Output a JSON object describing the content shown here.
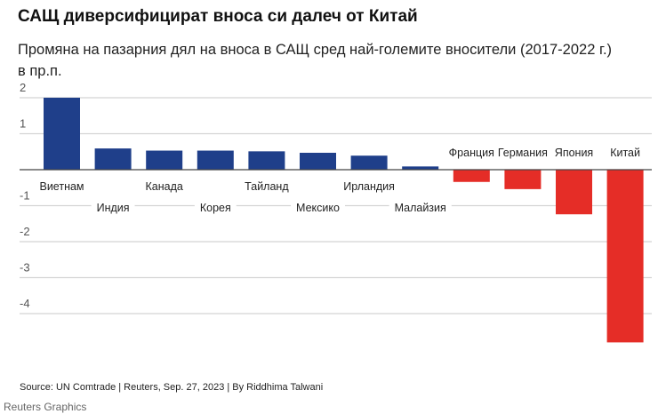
{
  "title": "САЩ диверсифицират вноса си далеч от Китай",
  "subtitle": "Промяна на пазарния дял на вноса в САЩ сред най-големите вносители (2017-2022 г.)",
  "unit": "в пр.п.",
  "source": "Source: UN Comtrade | Reuters, Sep. 27, 2023 | By Riddhima Talwani",
  "brand": "Reuters Graphics",
  "colors": {
    "positive": "#1f3f8a",
    "negative": "#e52d27"
  },
  "chart_data": {
    "type": "bar",
    "title": "САЩ диверсифицират вноса си далеч от Китай",
    "ylabel": "в пр.п.",
    "categories": [
      "Виетнам",
      "Индия",
      "Канада",
      "Корея",
      "Тайланд",
      "Мексико",
      "Ирландия",
      "Малайзия",
      "Франция",
      "Германия",
      "Япония",
      "Китай"
    ],
    "values": [
      2.0,
      0.59,
      0.53,
      0.53,
      0.51,
      0.47,
      0.39,
      0.09,
      -0.34,
      -0.54,
      -1.24,
      -4.8
    ],
    "ylim": [
      -4.9,
      2.2
    ],
    "yticks": [
      2,
      1,
      -1,
      -2,
      -3,
      -4
    ],
    "ytick_labels": [
      "2",
      "1",
      "-1",
      "-2",
      "-3",
      "-4"
    ],
    "grid": true
  }
}
